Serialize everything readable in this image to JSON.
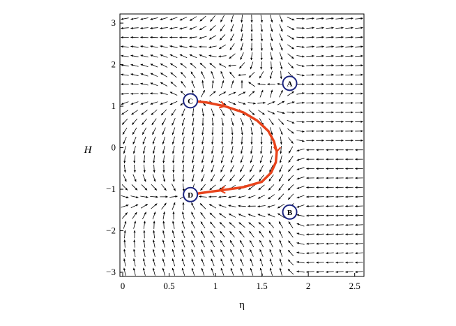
{
  "chart_data": {
    "type": "vector-field",
    "xlabel": "η",
    "ylabel": "H",
    "xlim": [
      -0.03,
      2.6
    ],
    "ylim": [
      -3.1,
      3.22
    ],
    "x_ticks": [
      {
        "value": 0,
        "label": "0"
      },
      {
        "value": 0.5,
        "label": "0.5"
      },
      {
        "value": 1,
        "label": "1"
      },
      {
        "value": 1.5,
        "label": "1.5"
      },
      {
        "value": 2,
        "label": "2"
      },
      {
        "value": 2.5,
        "label": "2.5"
      }
    ],
    "y_ticks": [
      {
        "value": -3,
        "label": "−3"
      },
      {
        "value": -2,
        "label": "−2"
      },
      {
        "value": -1,
        "label": "−1"
      },
      {
        "value": 0,
        "label": "0"
      },
      {
        "value": 1,
        "label": "1"
      },
      {
        "value": 2,
        "label": "2"
      },
      {
        "value": 3,
        "label": "3"
      }
    ],
    "field_arrow_color": "#000000",
    "critical_points": [
      {
        "label": "A",
        "x": 1.8,
        "y": 1.55
      },
      {
        "label": "B",
        "x": 1.8,
        "y": -1.55
      },
      {
        "label": "C",
        "x": 0.73,
        "y": 1.13
      },
      {
        "label": "D",
        "x": 0.73,
        "y": -1.13
      }
    ],
    "point_marker_color": "#1a237e",
    "trajectory": {
      "color": "#e8431b",
      "x": [
        0.73,
        0.9,
        1.1,
        1.3,
        1.45,
        1.57,
        1.63,
        1.66,
        1.65,
        1.6,
        1.5,
        1.3,
        1.05,
        0.85,
        0.73
      ],
      "y": [
        1.13,
        1.09,
        1.0,
        0.85,
        0.65,
        0.4,
        0.15,
        -0.1,
        -0.35,
        -0.6,
        -0.82,
        -0.95,
        -1.03,
        -1.09,
        -1.13
      ],
      "direction_arrows_at_index": [
        2,
        7,
        12
      ]
    }
  }
}
